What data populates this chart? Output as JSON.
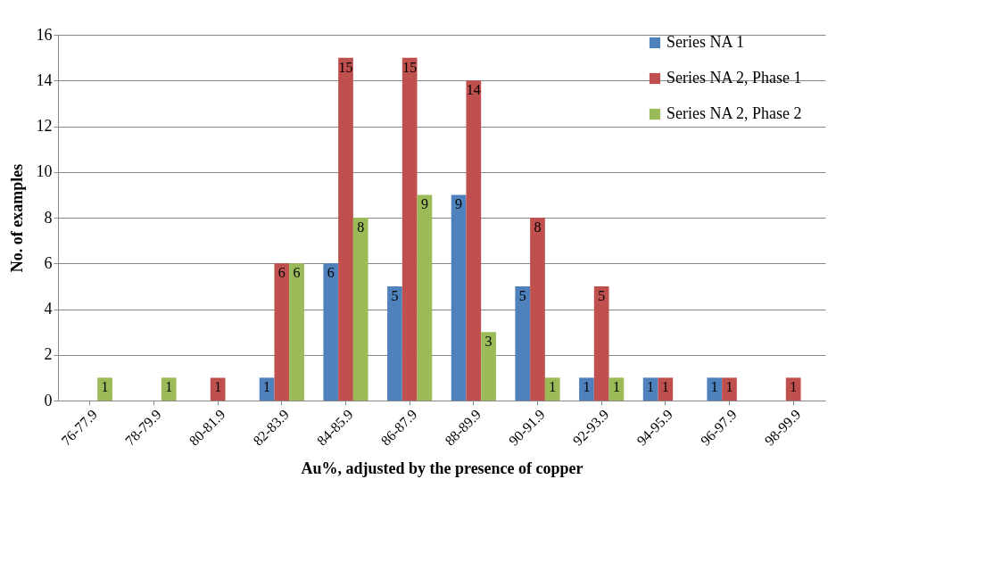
{
  "chart_data": {
    "type": "bar",
    "xlabel": "Au%, adjusted by the presence of copper",
    "ylabel": "No. of examples",
    "categories": [
      "76-77.9",
      "78-79.9",
      "80-81.9",
      "82-83.9",
      "84-85.9",
      "86-87.9",
      "88-89.9",
      "90-91.9",
      "92-93.9",
      "94-95.9",
      "96-97.9",
      "98-99.9"
    ],
    "series": [
      {
        "name": "Series NA 1",
        "color": "#4f81bd",
        "values": [
          null,
          null,
          null,
          1,
          6,
          5,
          9,
          5,
          1,
          1,
          1,
          null
        ]
      },
      {
        "name": "Series NA 2, Phase 1",
        "color": "#c0504d",
        "values": [
          null,
          null,
          1,
          6,
          15,
          15,
          14,
          8,
          5,
          1,
          1,
          1
        ]
      },
      {
        "name": "Series NA 2, Phase 2",
        "color": "#9bbb59",
        "values": [
          1,
          1,
          null,
          6,
          8,
          9,
          3,
          1,
          1,
          null,
          null,
          null
        ]
      }
    ],
    "ylim": [
      0,
      16
    ],
    "yticks": [
      0,
      2,
      4,
      6,
      8,
      10,
      12,
      14,
      16
    ],
    "grid": "y",
    "legend": "right",
    "data_labels": true
  }
}
